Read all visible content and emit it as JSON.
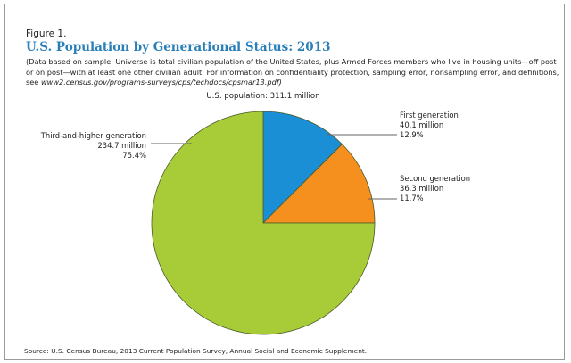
{
  "figure_label": "Figure 1.",
  "colors": {
    "title": "#2a7fb8",
    "first": "#1a8fd6",
    "second": "#f5901e",
    "third": "#a8cb38"
  },
  "chart_data": {
    "type": "pie",
    "title": "U.S. Population by Generational Status: 2013",
    "note_text": "(Data based on sample. Universe is total civilian population of the United States, plus Armed Forces members who live in housing units—off post or on post—with at least one other civilian adult. For information on confidentiality protection, sampling error, nonsampling error, and definitions, see ",
    "note_url": "www2.census.gov/programs-surveys/cps/techdocs/cpsmar13.pdf",
    "note_end": ")",
    "subtitle": "U.S. population: 311.1 million",
    "slices": [
      {
        "name": "First generation",
        "value": 40.1,
        "value_label": "40.1 million",
        "percent": 12.9,
        "percent_label": "12.9%",
        "color": "#1a8fd6"
      },
      {
        "name": "Second generation",
        "value": 36.3,
        "value_label": "36.3 million",
        "percent": 11.7,
        "percent_label": "11.7%",
        "color": "#f5901e"
      },
      {
        "name": "Third-and-higher generation",
        "value": 234.7,
        "value_label": "234.7 million",
        "percent": 75.4,
        "percent_label": "75.4%",
        "color": "#a8cb38"
      }
    ],
    "unit": "million",
    "source": "Source: U.S. Census Bureau, 2013 Current Population Survey, Annual Social and Economic Supplement."
  }
}
